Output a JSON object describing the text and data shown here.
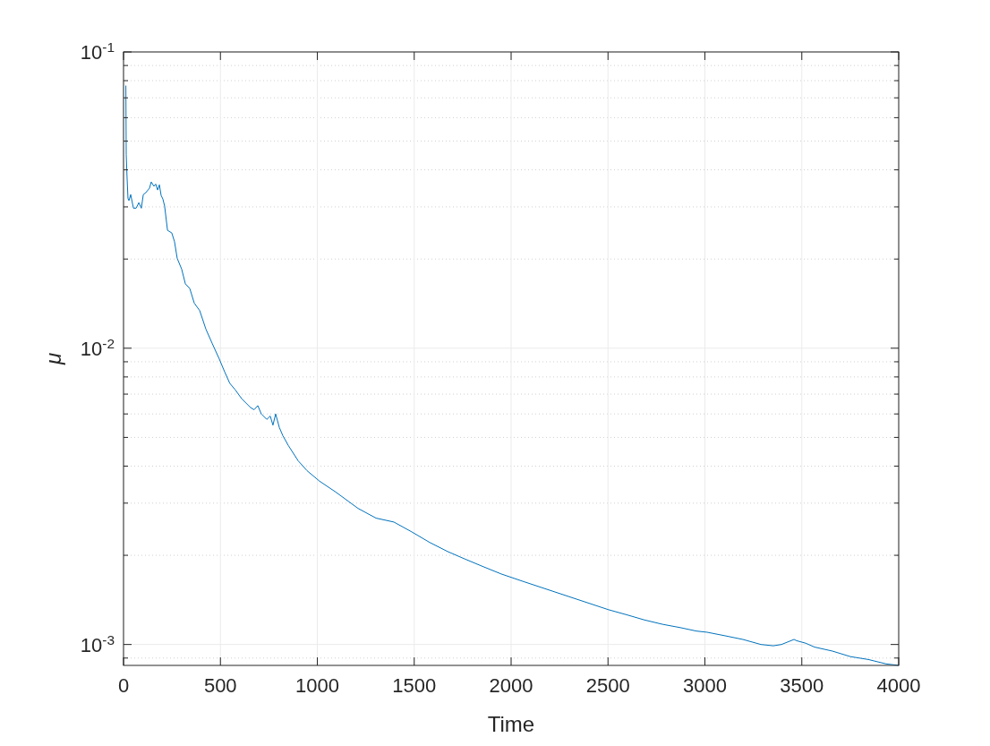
{
  "chart_data": {
    "type": "line",
    "xlabel": "Time",
    "ylabel": "μ",
    "log": "y",
    "grid": true,
    "xlim": [
      0,
      4000
    ],
    "ylim": [
      0.00085,
      0.1
    ],
    "xticks": [
      0,
      500,
      1000,
      1500,
      2000,
      2500,
      3000,
      3500,
      4000
    ],
    "yticks": [
      {
        "value": 0.001,
        "label": "10$^{-3}$"
      },
      {
        "value": 0.01,
        "label": "10$^{-2}$"
      },
      {
        "value": 0.1,
        "label": "10$^{-1}$"
      }
    ],
    "series": [
      {
        "color": "#0072bd",
        "x": [
          12,
          14,
          18,
          23,
          28,
          37,
          51,
          65,
          79,
          92,
          102,
          115,
          134,
          143,
          157,
          166,
          176,
          185,
          194,
          203,
          212,
          227,
          249,
          263,
          277,
          300,
          319,
          342,
          365,
          393,
          425,
          457,
          494,
          522,
          548,
          577,
          610,
          656,
          674,
          693,
          711,
          739,
          757,
          771,
          785,
          804,
          822,
          850,
          901,
          947,
          1011,
          1095,
          1210,
          1303,
          1395,
          1487,
          1580,
          1672,
          1764,
          1857,
          1949,
          2065,
          2503,
          2596,
          2688,
          2781,
          2873,
          2956,
          3011,
          3104,
          3196,
          3289,
          3353,
          3395,
          3460,
          3473,
          3520,
          3566,
          3658,
          3751,
          3843,
          3935,
          4000
        ],
        "values": [
          0.077,
          0.045,
          0.038,
          0.032,
          0.0315,
          0.033,
          0.0297,
          0.0297,
          0.031,
          0.0297,
          0.033,
          0.0335,
          0.0347,
          0.0364,
          0.0352,
          0.0358,
          0.0342,
          0.0356,
          0.0328,
          0.0319,
          0.0302,
          0.025,
          0.0245,
          0.0229,
          0.0201,
          0.0185,
          0.0165,
          0.0159,
          0.0142,
          0.0134,
          0.0116,
          0.0104,
          0.0092,
          0.00832,
          0.00762,
          0.00723,
          0.00675,
          0.0063,
          0.0062,
          0.0064,
          0.006,
          0.00575,
          0.0059,
          0.0055,
          0.006,
          0.0054,
          0.00507,
          0.0047,
          0.00417,
          0.00386,
          0.00356,
          0.00327,
          0.00288,
          0.00267,
          0.00259,
          0.0024,
          0.00221,
          0.00206,
          0.00194,
          0.00183,
          0.00173,
          0.00163,
          0.00131,
          0.00126,
          0.00121,
          0.00117,
          0.00114,
          0.00111,
          0.0011,
          0.00107,
          0.00104,
          0.001,
          0.00099,
          0.001,
          0.00104,
          0.00103,
          0.00101,
          0.00098,
          0.00095,
          0.00091,
          0.00089,
          0.00086,
          0.00085
        ]
      }
    ]
  }
}
